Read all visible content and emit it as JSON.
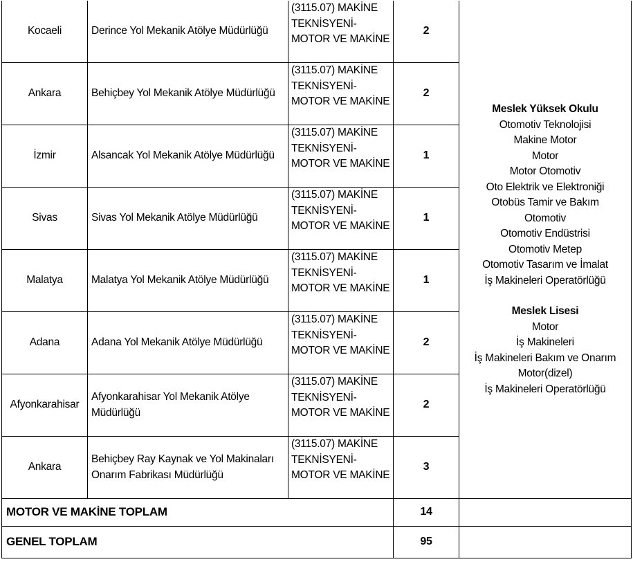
{
  "rows": [
    {
      "province": "Kocaeli",
      "unit": "Derince Yol Mekanik Atölye Müdürlüğü",
      "position": "(3115.07) MAKİNE TEKNİSYENİ-MOTOR VE MAKİNE",
      "count": "2"
    },
    {
      "province": "Ankara",
      "unit": "Behiçbey Yol Mekanik Atölye Müdürlüğü",
      "position": "(3115.07) MAKİNE TEKNİSYENİ-MOTOR VE MAKİNE",
      "count": "2"
    },
    {
      "province": "İzmir",
      "unit": "Alsancak Yol Mekanik Atölye Müdürlüğü",
      "position": "(3115.07) MAKİNE TEKNİSYENİ-MOTOR VE MAKİNE",
      "count": "1"
    },
    {
      "province": "Sivas",
      "unit": "Sivas Yol Mekanik Atölye Müdürlüğü",
      "position": "(3115.07) MAKİNE TEKNİSYENİ-MOTOR VE MAKİNE",
      "count": "1"
    },
    {
      "province": "Malatya",
      "unit": "Malatya Yol Mekanik Atölye Müdürlüğü",
      "position": "(3115.07) MAKİNE TEKNİSYENİ-MOTOR VE MAKİNE",
      "count": "1"
    },
    {
      "province": "Adana",
      "unit": "Adana Yol Mekanik Atölye Müdürlüğü",
      "position": "(3115.07) MAKİNE TEKNİSYENİ-MOTOR VE MAKİNE",
      "count": "2"
    },
    {
      "province": "Afyonkarahisar",
      "unit": "Afyonkarahisar Yol Mekanik Atölye Müdürlüğü",
      "position": "(3115.07) MAKİNE TEKNİSYENİ-MOTOR VE MAKİNE",
      "count": "2"
    },
    {
      "province": "Ankara",
      "unit": "Behiçbey Ray Kaynak ve Yol Makinaları Onarım Fabrikası Müdürlüğü",
      "position": "(3115.07) MAKİNE TEKNİSYENİ-MOTOR VE MAKİNE",
      "count": "3"
    }
  ],
  "requirements": {
    "vocational_college": {
      "heading": "Meslek Yüksek Okulu",
      "items": [
        "Otomotiv Teknolojisi",
        "Makine Motor",
        "Motor",
        "Motor Otomotiv",
        "Oto Elektrik ve Elektroniği",
        "Otobüs Tamir ve Bakım",
        "Otomotiv",
        "Otomotiv Endüstrisi",
        "Otomotiv Metep",
        "Otomotiv Tasarım ve İmalat",
        "İş Makineleri Operatörlüğü"
      ]
    },
    "vocational_high_school": {
      "heading": "Meslek Lisesi",
      "items": [
        "Motor",
        "İş Makineleri",
        "İş Makineleri Bakım ve Onarım",
        "Motor(dizel)",
        "İş Makineleri Operatörlüğü"
      ]
    }
  },
  "totals": {
    "category_label": "MOTOR VE MAKİNE TOPLAM",
    "category_value": "14",
    "general_label": "GENEL TOPLAM",
    "general_value": "95"
  }
}
